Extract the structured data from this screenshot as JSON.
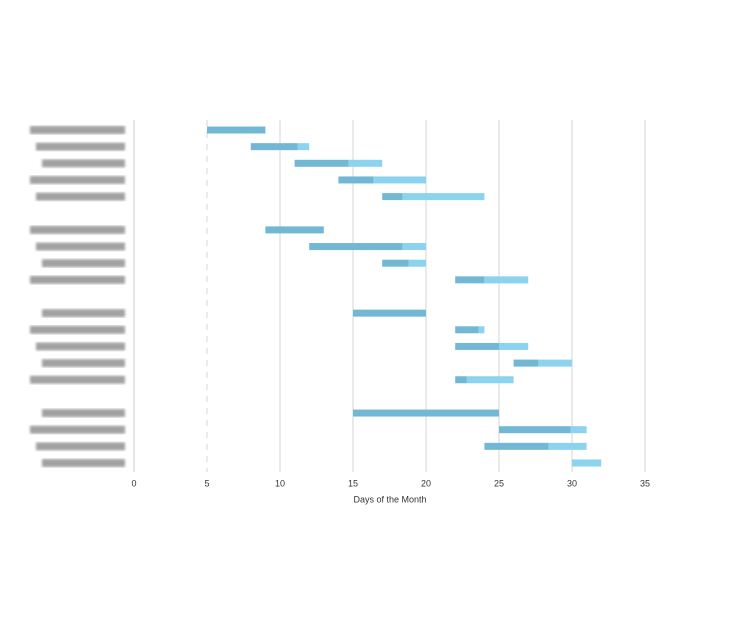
{
  "chart_data": {
    "type": "gantt",
    "x_label": "Days of the Month",
    "categories": [
      null,
      null,
      null,
      null,
      null,
      null,
      null,
      null,
      null,
      null,
      null,
      null,
      null,
      null,
      null,
      null,
      null,
      null,
      null,
      null,
      null
    ],
    "series": [
      {
        "color": "transparent",
        "values": [
          5,
          8,
          11,
          14,
          17,
          null,
          9,
          12,
          17,
          22,
          null,
          15,
          22,
          22,
          26,
          22,
          null,
          15,
          25,
          24,
          30
        ]
      },
      {
        "color": "#72b8d4",
        "values": [
          4,
          3.2,
          3.7,
          2.4,
          1.4,
          null,
          4,
          6.4,
          1.8,
          2,
          null,
          5,
          1.6,
          3,
          1.7,
          0.8,
          null,
          10,
          4.9,
          4.4,
          0
        ]
      },
      {
        "color": "#8bd3ee",
        "values": [
          0,
          0.8,
          2.3,
          3.6,
          5.6,
          null,
          0,
          1.6,
          1.2,
          3,
          null,
          0,
          0.4,
          2,
          2.3,
          3.2,
          null,
          0,
          1.1,
          2.6,
          2
        ]
      }
    ],
    "xlim": [
      0,
      40
    ],
    "xticks": [
      0,
      5,
      10,
      15,
      20,
      25,
      30,
      35
    ],
    "grid": true
  }
}
